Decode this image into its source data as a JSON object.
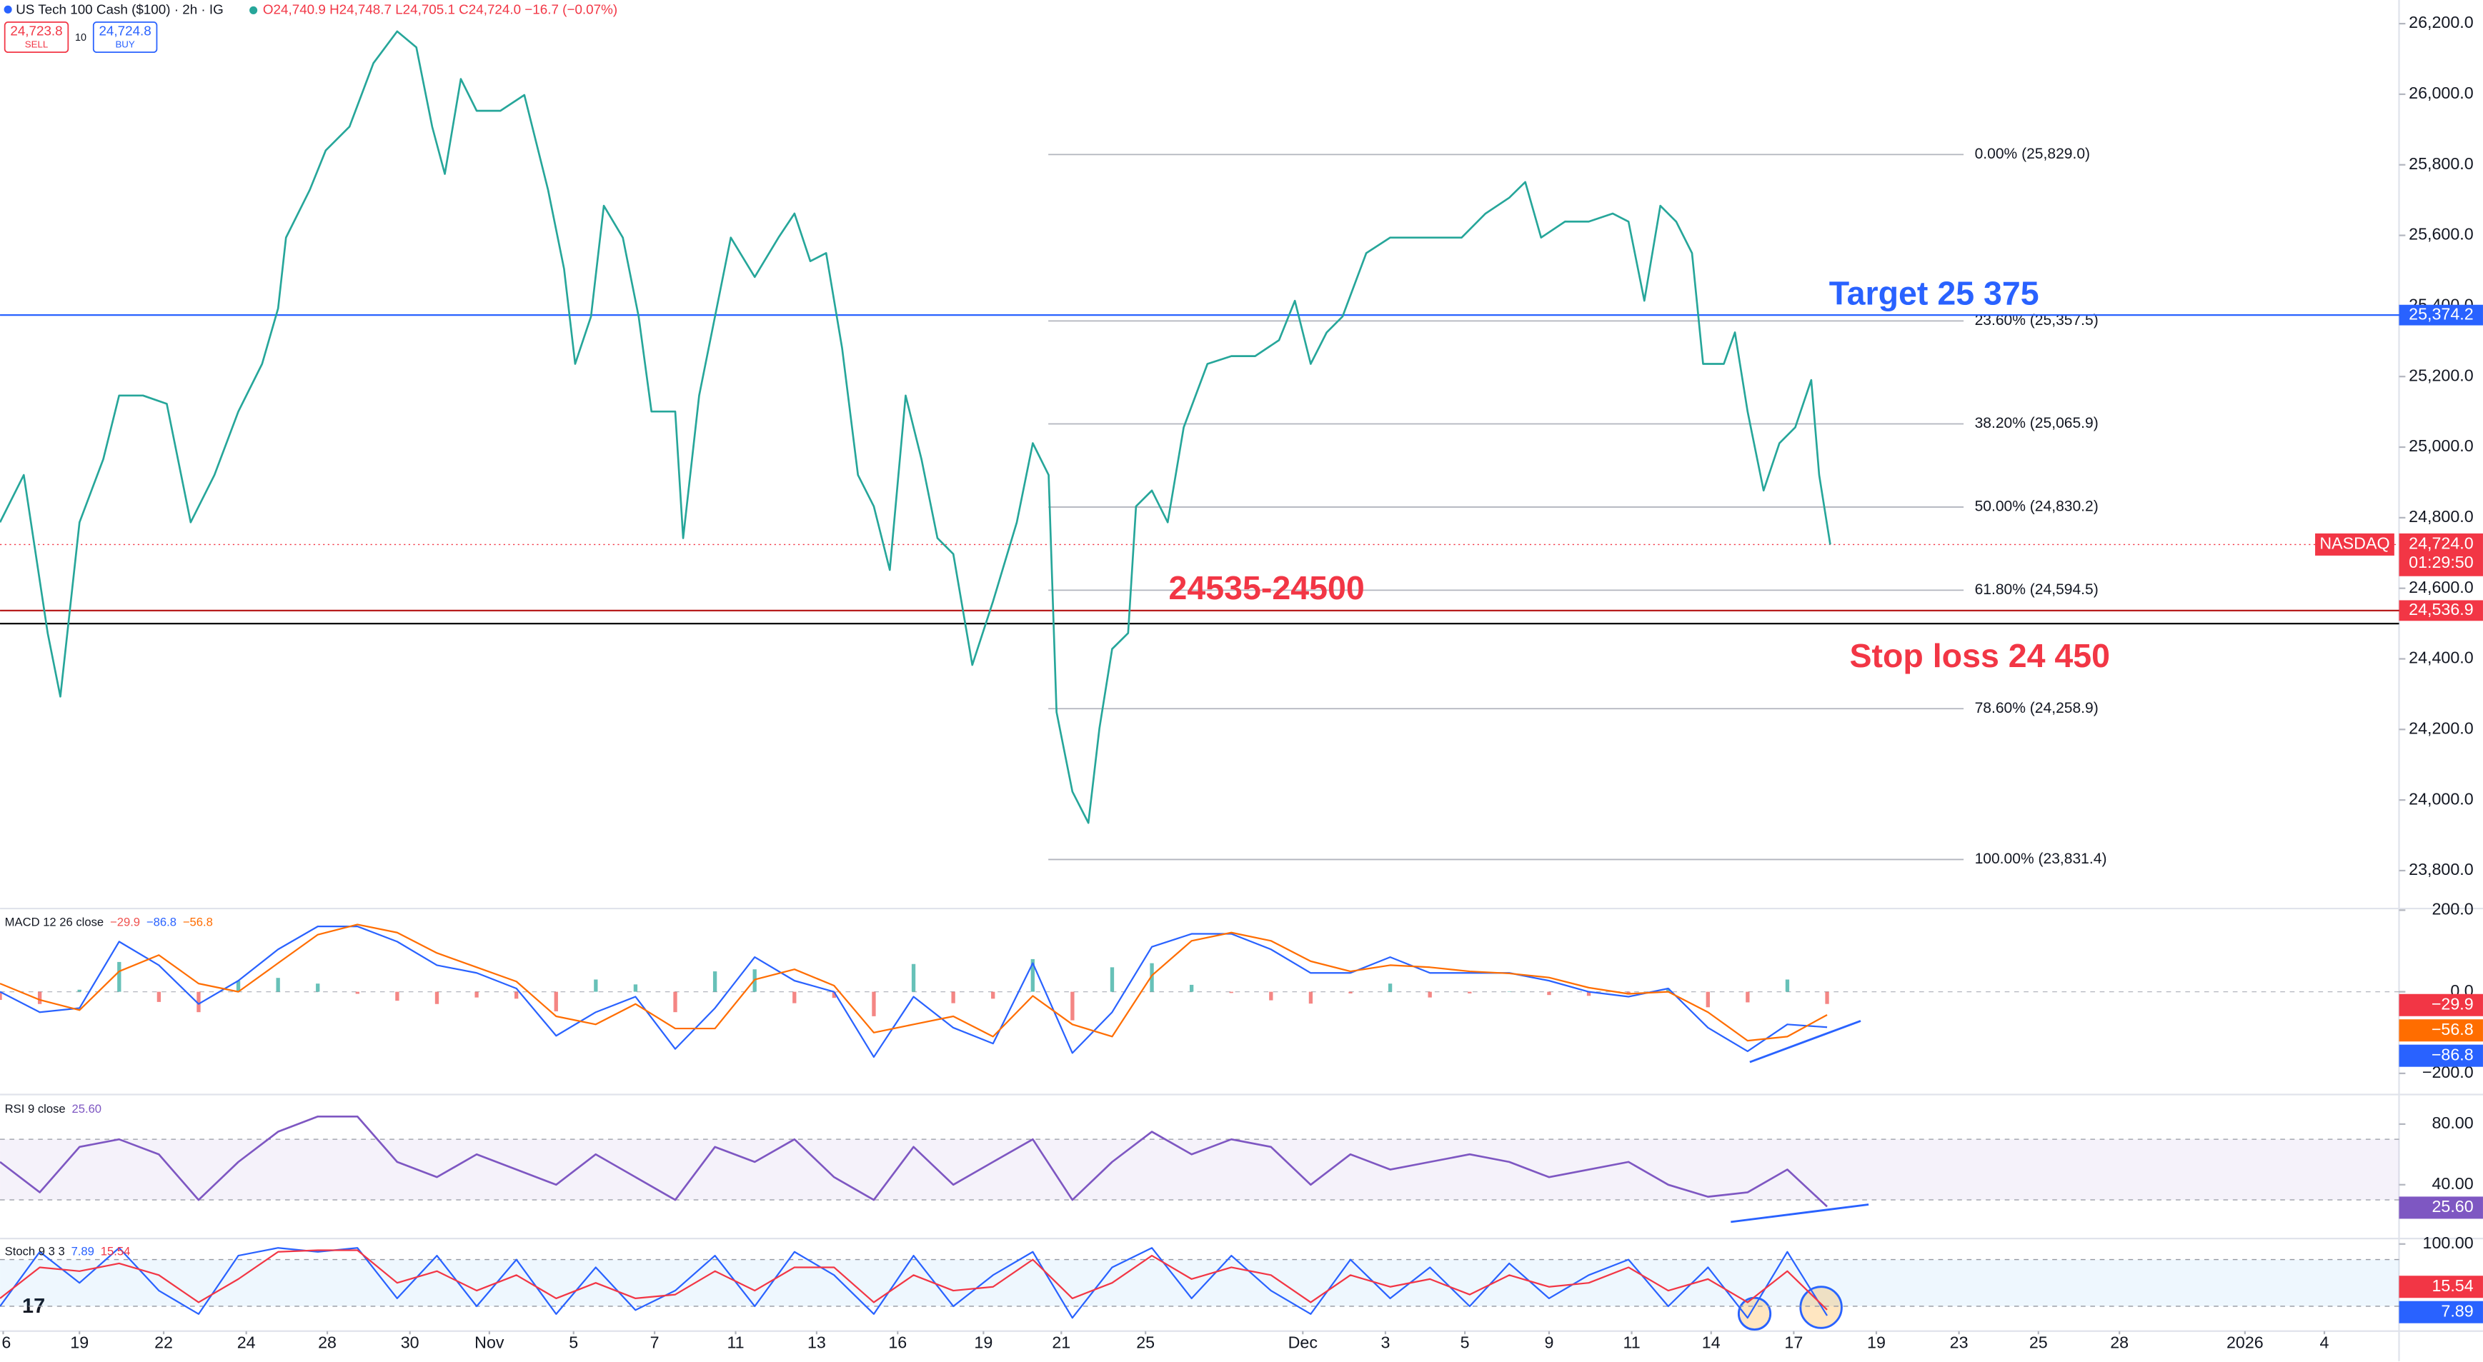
{
  "header": {
    "title": "US Tech 100 Cash ($100) · 2h · IG",
    "ohlc": "O24,740.9 H24,748.7 L24,705.1 C24,724.0 −16.7 (−0.07%)",
    "sell_price": "24,723.8",
    "sell": "SELL",
    "spread": "10",
    "buy_price": "24,724.8",
    "buy": "BUY"
  },
  "chart_data": [
    {
      "type": "line",
      "color": "#26a69a",
      "xlim": [
        0,
        755
      ],
      "ylim": [
        23697,
        26267
      ],
      "yticks": [
        {
          "value": 23800,
          "label": "23,800.0"
        },
        {
          "value": 24000,
          "label": "24,000.0"
        },
        {
          "value": 24200,
          "label": "24,200.0"
        },
        {
          "value": 24400,
          "label": "24,400.0"
        },
        {
          "value": 24600,
          "label": "24,600.0"
        },
        {
          "value": 24800,
          "label": "24,800.0"
        },
        {
          "value": 25000,
          "label": "25,000.0"
        },
        {
          "value": 25200,
          "label": "25,200.0"
        },
        {
          "value": 25400,
          "label": "25,400.0"
        },
        {
          "value": 25600,
          "label": "25,600.0"
        },
        {
          "value": 25800,
          "label": "25,800.0"
        },
        {
          "value": 26000,
          "label": "26,000.0"
        },
        {
          "value": 26200,
          "label": "26,200.0"
        }
      ],
      "xticks": [
        {
          "value": 1,
          "label": "6"
        },
        {
          "value": 25,
          "label": "19"
        },
        {
          "value": 51.5,
          "label": "22"
        },
        {
          "value": 77.5,
          "label": "24"
        },
        {
          "value": 103,
          "label": "28"
        },
        {
          "value": 129,
          "label": "30"
        },
        {
          "value": 154,
          "label": "Nov"
        },
        {
          "value": 180.5,
          "label": "5"
        },
        {
          "value": 206,
          "label": "7"
        },
        {
          "value": 231.5,
          "label": "11"
        },
        {
          "value": 257,
          "label": "13"
        },
        {
          "value": 282.5,
          "label": "16"
        },
        {
          "value": 309.5,
          "label": "19"
        },
        {
          "value": 334,
          "label": "21"
        },
        {
          "value": 360.5,
          "label": "25"
        },
        {
          "value": 410,
          "label": "Dec"
        },
        {
          "value": 436,
          "label": "3"
        },
        {
          "value": 461,
          "label": "5"
        },
        {
          "value": 487.5,
          "label": "9"
        },
        {
          "value": 513.5,
          "label": "11"
        },
        {
          "value": 538.5,
          "label": "14"
        },
        {
          "value": 564.5,
          "label": "17"
        },
        {
          "value": 590.5,
          "label": "19"
        },
        {
          "value": 616.5,
          "label": "23"
        },
        {
          "value": 641.5,
          "label": "25"
        },
        {
          "value": 667,
          "label": "28"
        },
        {
          "value": 706.5,
          "label": "2026"
        },
        {
          "value": 731.5,
          "label": "4"
        }
      ],
      "x": [
        0,
        7.5,
        15,
        19,
        25,
        32.5,
        37.5,
        45,
        52.5,
        60,
        67.5,
        75,
        82.5,
        87.5,
        90,
        97.5,
        102.5,
        110,
        117.5,
        125,
        131,
        136,
        140,
        145,
        150,
        157.5,
        165,
        172.5,
        177.5,
        181,
        186,
        190,
        196,
        201,
        205,
        212.5,
        215,
        220,
        225,
        230,
        237.5,
        245,
        250,
        255,
        260,
        265,
        270,
        275,
        280,
        285,
        290,
        295,
        300,
        306,
        312.5,
        320,
        325,
        330,
        332.5,
        337.5,
        342.5,
        346,
        350,
        355,
        357.5,
        362.5,
        367.5,
        372.5,
        380,
        387.5,
        395,
        402.5,
        407.5,
        412.5,
        417.5,
        422.5,
        430,
        437.5,
        445,
        452.5,
        460,
        467.5,
        475,
        480,
        485,
        492.5,
        500,
        507.5,
        512.5,
        517.5,
        522.5,
        527.5,
        532.5,
        536,
        542.5,
        546,
        550,
        555,
        560,
        565,
        570,
        572.5,
        576
      ],
      "values": [
        24787,
        24921,
        24473,
        24293,
        24787,
        24966,
        25146,
        25146,
        25123,
        24787,
        24921,
        25101,
        25236,
        25393,
        25594,
        25729,
        25841,
        25908,
        26088,
        26178,
        26133,
        25908,
        25774,
        26043,
        25953,
        25953,
        25998,
        25729,
        25505,
        25236,
        25370,
        25684,
        25594,
        25370,
        25101,
        25101,
        24742,
        25146,
        25370,
        25594,
        25482,
        25594,
        25662,
        25527,
        25550,
        25280,
        24921,
        24832,
        24652,
        25146,
        24966,
        24742,
        24697,
        24383,
        24563,
        24787,
        25011,
        24921,
        24249,
        24024,
        23935,
        24204,
        24428,
        24473,
        24832,
        24877,
        24787,
        25056,
        25236,
        25258,
        25258,
        25303,
        25415,
        25236,
        25325,
        25370,
        25550,
        25594,
        25594,
        25594,
        25594,
        25662,
        25707,
        25751,
        25594,
        25639,
        25639,
        25662,
        25639,
        25415,
        25684,
        25639,
        25550,
        25236,
        25236,
        25325,
        25101,
        24877,
        25011,
        25056,
        25190,
        24921,
        24724
      ],
      "hlines": [
        {
          "value": 25374.2,
          "label": "25,374.2",
          "color": "#2962ff"
        },
        {
          "value": 24536.9,
          "label": "24,536.9",
          "color": "#b71c1c"
        },
        {
          "value": 24500,
          "color": "#000000"
        }
      ],
      "fib": [
        {
          "value": 25829,
          "label": "0.00% (25,829.0)"
        },
        {
          "value": 25357.5,
          "label": "23.60% (25,357.5)"
        },
        {
          "value": 25065.9,
          "label": "38.20% (25,065.9)"
        },
        {
          "value": 24830.2,
          "label": "50.00% (24,830.2)"
        },
        {
          "value": 24594.5,
          "label": "61.80% (24,594.5)"
        },
        {
          "value": 24258.9,
          "label": "78.60% (24,258.9)"
        },
        {
          "value": 23831.4,
          "label": "100.00% (23,831.4)"
        }
      ],
      "annotations": [
        {
          "text": "Target 25 375",
          "color": "#2962ff"
        },
        {
          "text": "24535-24500",
          "color": "#f23645"
        },
        {
          "text": "Stop loss 24 450",
          "color": "#f23645"
        }
      ],
      "last_price": {
        "value": 24724,
        "label": "24,724.0",
        "time": "01:29:50",
        "exchange": "NASDAQ",
        "color": "#f23645"
      }
    },
    {
      "type": "macd",
      "title": "MACD 12 26 close",
      "ylim": [
        -246,
        204
      ],
      "yticks": [
        {
          "value": 200,
          "label": "200.0"
        },
        {
          "value": 0,
          "label": "0.0"
        },
        {
          "value": -200,
          "label": "−200.0"
        }
      ],
      "x": [
        0,
        12.5,
        25,
        37.5,
        50,
        62.5,
        75,
        87.5,
        100,
        112.5,
        125,
        137.5,
        150,
        162.5,
        175,
        187.5,
        200,
        212.5,
        225,
        237.5,
        250,
        262.5,
        275,
        287.5,
        300,
        312.5,
        325,
        337.5,
        350,
        362.5,
        375,
        387.5,
        400,
        412.5,
        425,
        437.5,
        450,
        462.5,
        475,
        487.5,
        500,
        512.5,
        525,
        537.5,
        550,
        562.5,
        575
      ],
      "histogram": {
        "color": "#ef5350",
        "color_up": "#26a69a",
        "label": "−29.9",
        "values": [
          -20,
          -30,
          5,
          73,
          -25,
          -50,
          27,
          34,
          20,
          -5,
          -22,
          -30,
          -14,
          -17,
          -48,
          30,
          18,
          -50,
          50,
          55,
          -28,
          -15,
          -60,
          68,
          -28,
          -17,
          80,
          -70,
          60,
          70,
          17,
          -3,
          -21,
          -29,
          -4,
          20,
          -14,
          -4,
          1,
          -8,
          -10,
          -7,
          8,
          -38,
          -26,
          30,
          -29.9
        ]
      },
      "macd": {
        "color": "#2962ff",
        "label": "−86.8",
        "values": [
          0,
          -50,
          -40,
          123,
          65,
          -30,
          27,
          104,
          160,
          160,
          123,
          65,
          46,
          8,
          -108,
          -50,
          -12,
          -140,
          -40,
          85,
          27,
          0,
          -160,
          -12,
          -88,
          -127,
          70,
          -150,
          -50,
          110,
          142,
          142,
          104,
          46,
          46,
          85,
          46,
          46,
          46,
          27,
          0,
          -12,
          8,
          -88,
          -146,
          -80,
          -86.8
        ]
      },
      "signal": {
        "color": "#ff6d00",
        "label": "−56.8",
        "values": [
          20,
          -20,
          -45,
          50,
          90,
          20,
          0,
          70,
          140,
          165,
          145,
          95,
          60,
          25,
          -60,
          -80,
          -30,
          -90,
          -90,
          30,
          55,
          15,
          -100,
          -80,
          -60,
          -110,
          -10,
          -80,
          -110,
          40,
          125,
          145,
          125,
          75,
          50,
          65,
          60,
          50,
          45,
          35,
          10,
          -5,
          0,
          -50,
          -120,
          -110,
          -56.8
        ]
      }
    },
    {
      "type": "rsi",
      "title": "RSI 9 close",
      "ylim": [
        5,
        99
      ],
      "band": [
        30,
        70
      ],
      "band_color": "#7e57c2",
      "yticks": [
        {
          "value": 80,
          "label": "80.00"
        },
        {
          "value": 40,
          "label": "40.00"
        }
      ],
      "x": [
        0,
        12.5,
        25,
        37.5,
        50,
        62.5,
        75,
        87.5,
        100,
        112.5,
        125,
        137.5,
        150,
        162.5,
        175,
        187.5,
        200,
        212.5,
        225,
        237.5,
        250,
        262.5,
        275,
        287.5,
        300,
        312.5,
        325,
        337.5,
        350,
        362.5,
        375,
        387.5,
        400,
        412.5,
        425,
        437.5,
        450,
        462.5,
        475,
        487.5,
        500,
        512.5,
        525,
        537.5,
        550,
        562.5,
        575
      ],
      "color": "#7e57c2",
      "label": "25.60",
      "values": [
        55,
        35,
        65,
        70,
        60,
        30,
        55,
        75,
        85,
        85,
        55,
        45,
        60,
        50,
        40,
        60,
        45,
        30,
        65,
        55,
        70,
        45,
        30,
        65,
        40,
        55,
        70,
        30,
        55,
        75,
        60,
        70,
        65,
        40,
        60,
        50,
        55,
        60,
        55,
        45,
        50,
        55,
        40,
        32,
        35,
        50,
        25.6
      ]
    },
    {
      "type": "stoch",
      "title": "Stoch 9 3 3",
      "ylim": [
        -10,
        106
      ],
      "band": [
        20,
        80
      ],
      "band_color": "#2196f3",
      "yticks": [
        {
          "value": 100,
          "label": "100.00"
        }
      ],
      "x": [
        0,
        12.5,
        25,
        37.5,
        50,
        62.5,
        75,
        87.5,
        100,
        112.5,
        125,
        137.5,
        150,
        162.5,
        175,
        187.5,
        200,
        212.5,
        225,
        237.5,
        250,
        262.5,
        275,
        287.5,
        300,
        312.5,
        325,
        337.5,
        350,
        362.5,
        375,
        387.5,
        400,
        412.5,
        425,
        437.5,
        450,
        462.5,
        475,
        487.5,
        500,
        512.5,
        525,
        537.5,
        550,
        562.5,
        575
      ],
      "k": {
        "color": "#2962ff",
        "label": "7.89",
        "values": [
          20,
          90,
          50,
          95,
          40,
          10,
          85,
          95,
          90,
          95,
          30,
          85,
          20,
          80,
          10,
          70,
          15,
          40,
          85,
          20,
          90,
          60,
          10,
          85,
          20,
          60,
          90,
          5,
          70,
          95,
          30,
          85,
          40,
          10,
          80,
          30,
          70,
          20,
          75,
          30,
          60,
          80,
          20,
          70,
          5,
          90,
          7.89
        ]
      },
      "d": {
        "color": "#f23645",
        "label": "15.54",
        "values": [
          30,
          70,
          65,
          75,
          60,
          25,
          55,
          90,
          92,
          92,
          50,
          65,
          40,
          60,
          30,
          50,
          30,
          35,
          65,
          40,
          70,
          70,
          25,
          60,
          40,
          45,
          80,
          30,
          50,
          85,
          55,
          70,
          60,
          25,
          60,
          45,
          55,
          35,
          60,
          45,
          50,
          70,
          40,
          55,
          25,
          65,
          15.54
        ]
      }
    }
  ]
}
